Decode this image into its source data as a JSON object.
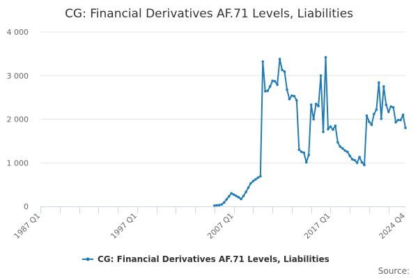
{
  "chart_data": {
    "type": "line",
    "title": "CG: Financial Derivatives AF.71 Levels, Liabilities",
    "xlabel": "",
    "ylabel": "",
    "x_tick_labels": [
      "1987 Q1",
      "1997 Q1",
      "2007 Q1",
      "2017 Q1",
      "2024 Q4"
    ],
    "x_tick_quarters": [
      0,
      40,
      80,
      120,
      151
    ],
    "x_range": [
      0,
      151
    ],
    "y_ticks": [
      0,
      1000,
      2000,
      3000,
      4000
    ],
    "y_tick_labels": [
      "0",
      "1 000",
      "2 000",
      "3 000",
      "4 000"
    ],
    "ylim": [
      0,
      4000
    ],
    "grid": "horizontal",
    "legend_position": "bottom-center",
    "credits": "Source:",
    "colors": {
      "series": "#1f7ab6",
      "grid": "#e6e6e6",
      "axis": "#ccd6eb"
    },
    "series": [
      {
        "name": "CG: Financial Derivatives AF.71 Levels, Liabilities",
        "x_start_quarter": 72,
        "values": [
          20,
          25,
          30,
          45,
          90,
          160,
          230,
          300,
          270,
          240,
          210,
          170,
          240,
          330,
          430,
          530,
          580,
          620,
          660,
          690,
          3320,
          2640,
          2650,
          2750,
          2880,
          2870,
          2790,
          3380,
          3130,
          3090,
          2680,
          2460,
          2540,
          2530,
          2430,
          1300,
          1250,
          1230,
          1010,
          1180,
          2330,
          2000,
          2350,
          2300,
          3000,
          1710,
          3420,
          1770,
          1830,
          1760,
          1850,
          1470,
          1370,
          1330,
          1280,
          1250,
          1160,
          1080,
          1060,
          1000,
          1130,
          1010,
          950,
          2080,
          1940,
          1870,
          2120,
          2220,
          2840,
          2010,
          2750,
          2330,
          2170,
          2290,
          2270,
          1930,
          1980,
          1980,
          2100,
          1800
        ]
      }
    ]
  }
}
